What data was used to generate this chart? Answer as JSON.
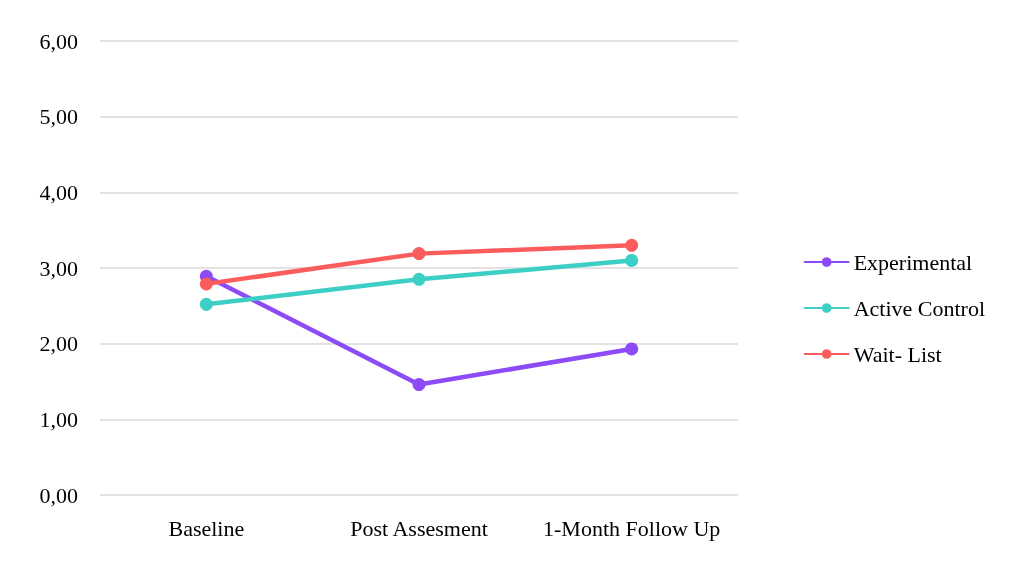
{
  "chart_data": {
    "type": "line",
    "categories": [
      "Baseline",
      "Post Assesment",
      "1-Month Follow Up"
    ],
    "series": [
      {
        "name": "Experimental",
        "color": "#8c4bf6",
        "values": [
          2.89,
          1.46,
          1.93
        ]
      },
      {
        "name": "Active Control",
        "color": "#3dcfc5",
        "values": [
          2.52,
          2.85,
          3.1
        ]
      },
      {
        "name": "Wait- List",
        "color": "#fb5d5d",
        "values": [
          2.79,
          3.19,
          3.3
        ]
      }
    ],
    "ylim": [
      0,
      6
    ],
    "yticks": [
      {
        "value": 0,
        "label": "0,00"
      },
      {
        "value": 1,
        "label": "1,00"
      },
      {
        "value": 2,
        "label": "2,00"
      },
      {
        "value": 3,
        "label": "3,00"
      },
      {
        "value": 4,
        "label": "4,00"
      },
      {
        "value": 5,
        "label": "5,00"
      },
      {
        "value": 6,
        "label": "6,00"
      }
    ],
    "grid": "y",
    "legend": "right",
    "marker": "circle",
    "line_style": "solid"
  }
}
